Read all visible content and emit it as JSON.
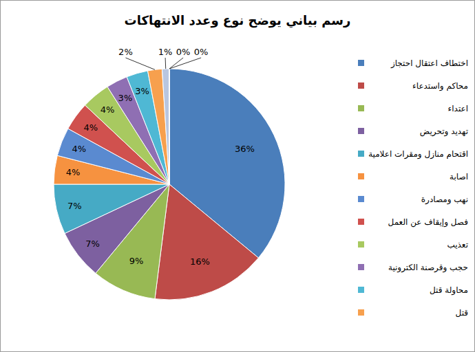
{
  "chart_data": {
    "type": "pie",
    "title": "رسم بياني يوضح نوع وعدد الانتهاكات",
    "categories": [
      "اختطاف اعتقال احتجاز",
      "محاكم واستدعاء",
      "اعتداء",
      "تهديد وتحريض",
      "اقتحام منازل ومقرات اعلامية",
      "اصابة",
      "نهب ومصادرة",
      "فصل وإيقاف عن العمل",
      "تعذيب",
      "حجب وقرصنة الكترونية",
      "محاولة قتل",
      "قتل",
      null,
      null,
      null
    ],
    "values": [
      36,
      16,
      9,
      7,
      7,
      4,
      4,
      4,
      4,
      3,
      3,
      2,
      1,
      0,
      0
    ],
    "value_labels": [
      "36%",
      "16%",
      "9%",
      "7%",
      "7%",
      "4%",
      "4%",
      "4%",
      "4%",
      "3%",
      "3%",
      "2%",
      "1%",
      "0%",
      "0%"
    ],
    "colors": [
      "#4a7ebb",
      "#be4b48",
      "#98b954",
      "#7d60a0",
      "#46aac5",
      "#f69240",
      "#5a8ad0",
      "#d0514e",
      "#a8c960",
      "#8f6fb3",
      "#4fb8d4",
      "#f7a04e",
      "#b9c6e0",
      "#e0b4b3",
      "#d3e2b5"
    ],
    "data_labels": true,
    "legend": "right"
  }
}
